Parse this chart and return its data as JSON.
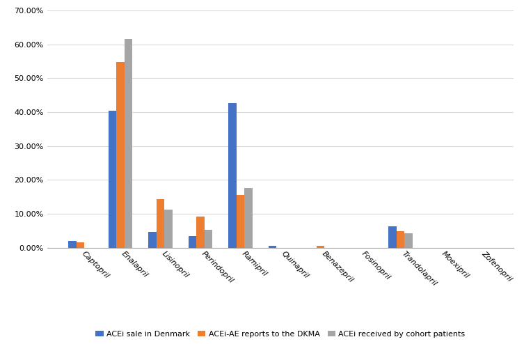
{
  "categories": [
    "Captopril",
    "Enalapril",
    "Lisinopril",
    "Perindopril",
    "Ramipril",
    "Quinapril",
    "Benazepril",
    "Fosinopril",
    "Trandolapril",
    "Moexipril",
    "Zofenopril"
  ],
  "series": {
    "ACEi sale in Denmark": [
      2.0,
      40.4,
      4.7,
      3.5,
      42.7,
      0.6,
      0.0,
      0.0,
      6.2,
      0.0,
      0.0
    ],
    "ACEi-AE reports to the DKMA": [
      1.6,
      54.8,
      14.3,
      9.1,
      15.6,
      0.0,
      0.6,
      0.0,
      4.8,
      0.0,
      0.0
    ],
    "ACEi received by cohort patients": [
      0.0,
      61.6,
      11.3,
      5.2,
      17.6,
      0.0,
      0.0,
      0.0,
      4.3,
      0.0,
      0.0
    ]
  },
  "colors": {
    "ACEi sale in Denmark": "#4472C4",
    "ACEi-AE reports to the DKMA": "#ED7D31",
    "ACEi received by cohort patients": "#A5A5A5"
  },
  "ylim": [
    0,
    70
  ],
  "yticks": [
    0,
    10,
    20,
    30,
    40,
    50,
    60,
    70
  ],
  "ytick_labels": [
    "0.00%",
    "10.00%",
    "20.00%",
    "30.00%",
    "40.00%",
    "50.00%",
    "60.00%",
    "70.00%"
  ],
  "background_color": "#FFFFFF",
  "bar_width": 0.2,
  "grid_color": "#D9D9D9",
  "tick_fontsize": 8,
  "legend_fontsize": 8
}
